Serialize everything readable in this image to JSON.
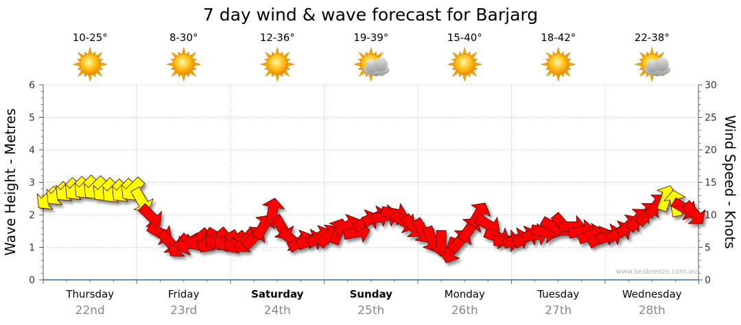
{
  "chart_data": {
    "type": "line",
    "title": "7 day wind & wave forecast for Barjarg",
    "ylabel_left": "Wave Height - Metres",
    "ylabel_right": "Wind Speed - Knots",
    "ylim_left": [
      0,
      6
    ],
    "ylim_right": [
      0,
      30
    ],
    "yticks_left": [
      "0",
      "1",
      "2",
      "3",
      "4",
      "5",
      "6"
    ],
    "yticks_right": [
      "0",
      "5",
      "10",
      "15",
      "20",
      "25",
      "30"
    ],
    "grid": true,
    "watermark": "www.seabreeze.com.au",
    "days": [
      {
        "name": "Thursday",
        "date": "22nd",
        "temp": "10-25°",
        "icon": "sun-icon",
        "bold": false
      },
      {
        "name": "Friday",
        "date": "23rd",
        "temp": "8-30°",
        "icon": "sun-icon",
        "bold": false
      },
      {
        "name": "Saturday",
        "date": "24th",
        "temp": "12-36°",
        "icon": "sun-icon",
        "bold": true
      },
      {
        "name": "Sunday",
        "date": "25th",
        "temp": "19-39°",
        "icon": "sun-cloud-icon",
        "bold": true
      },
      {
        "name": "Monday",
        "date": "26th",
        "temp": "15-40°",
        "icon": "sun-icon",
        "bold": false
      },
      {
        "name": "Tuesday",
        "date": "27th",
        "temp": "18-42°",
        "icon": "sun-icon",
        "bold": false
      },
      {
        "name": "Wednesday",
        "date": "28th",
        "temp": "22-38°",
        "icon": "sun-cloud-icon",
        "bold": false
      }
    ],
    "series": [
      {
        "name": "Wind Speed",
        "units": "knots",
        "colors": {
          "light": "#ffff00",
          "strong": "#ff0000"
        },
        "x_day": [
          0.0,
          0.1,
          0.2,
          0.3,
          0.4,
          0.5,
          0.6,
          0.7,
          0.8,
          0.9,
          1.0,
          1.1,
          1.2,
          1.3,
          1.4,
          1.5,
          1.6,
          1.7,
          1.8,
          1.9,
          2.0,
          2.1,
          2.2,
          2.3,
          2.4,
          2.5,
          2.6,
          2.7,
          2.8,
          2.9,
          3.0,
          3.1,
          3.2,
          3.3,
          3.4,
          3.5,
          3.6,
          3.7,
          3.8,
          3.9,
          4.0,
          4.1,
          4.2,
          4.3,
          4.4,
          4.5,
          4.6,
          4.7,
          4.8,
          4.9,
          5.0,
          5.1,
          5.2,
          5.3,
          5.4,
          5.5,
          5.6,
          5.7,
          5.8,
          5.9,
          6.0,
          6.1,
          6.2,
          6.3,
          6.4,
          6.5,
          6.6,
          6.7,
          6.8,
          6.9
        ],
        "values": [
          12.5,
          13.2,
          13.8,
          14.0,
          14.2,
          14.1,
          13.8,
          13.6,
          13.7,
          13.9,
          12.2,
          9.8,
          7.2,
          5.8,
          5.2,
          5.6,
          6.2,
          6.0,
          6.3,
          6.1,
          5.8,
          5.9,
          6.5,
          8.2,
          10.6,
          8.0,
          6.2,
          5.9,
          6.0,
          6.6,
          6.8,
          7.5,
          8.3,
          7.3,
          9.0,
          9.6,
          9.8,
          10.2,
          9.0,
          8.2,
          7.5,
          6.2,
          5.6,
          4.5,
          6.0,
          7.8,
          10.1,
          8.5,
          6.6,
          6.0,
          6.2,
          6.5,
          6.9,
          7.4,
          8.1,
          8.4,
          8.2,
          7.5,
          6.9,
          6.5,
          6.8,
          7.3,
          8.3,
          9.3,
          10.2,
          11.5,
          12.6,
          11.8,
          11.0,
          10.2
        ],
        "direction_deg": [
          225,
          225,
          225,
          225,
          225,
          225,
          225,
          225,
          225,
          225,
          150,
          135,
          120,
          140,
          220,
          240,
          230,
          210,
          230,
          240,
          230,
          220,
          45,
          30,
          10,
          150,
          130,
          60,
          70,
          60,
          45,
          20,
          60,
          80,
          60,
          70,
          80,
          100,
          120,
          140,
          150,
          160,
          180,
          200,
          40,
          35,
          30,
          120,
          110,
          90,
          70,
          60,
          80,
          100,
          120,
          140,
          90,
          80,
          70,
          60,
          70,
          60,
          50,
          40,
          40,
          40,
          20,
          350,
          120,
          140
        ]
      }
    ]
  }
}
